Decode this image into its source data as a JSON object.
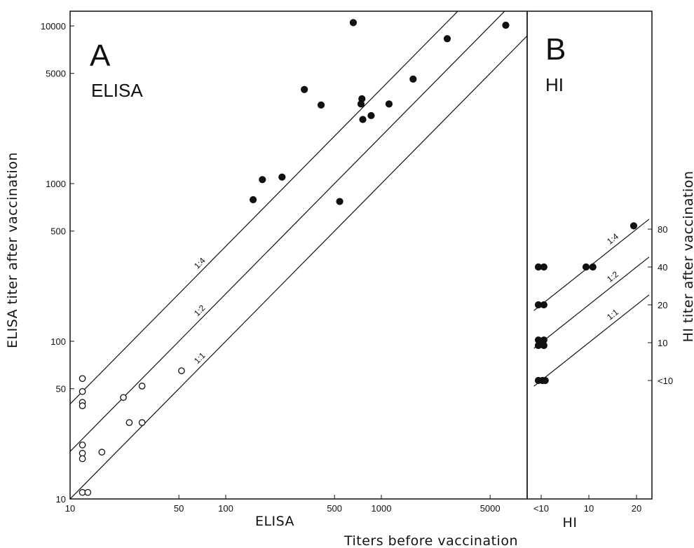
{
  "chart_data": [
    {
      "panel": "A",
      "panel_subtitle": "ELISA",
      "type": "scatter",
      "xlabel": "ELISA",
      "ylabel": "ELISA titer after vaccination",
      "xscale": "log",
      "yscale": "log",
      "xlim": [
        10,
        8000
      ],
      "ylim": [
        10,
        13000
      ],
      "x_ticks": [
        {
          "value": 10,
          "label": "10"
        },
        {
          "value": 50,
          "label": "50"
        },
        {
          "value": 100,
          "label": "100"
        },
        {
          "value": 500,
          "label": "500"
        },
        {
          "value": 1000,
          "label": "1000"
        },
        {
          "value": 5000,
          "label": "5000"
        }
      ],
      "y_ticks": [
        {
          "value": 10,
          "label": "10"
        },
        {
          "value": 50,
          "label": "50"
        },
        {
          "value": 100,
          "label": "100"
        },
        {
          "value": 500,
          "label": "500"
        },
        {
          "value": 1000,
          "label": "1000"
        },
        {
          "value": 5000,
          "label": "5000"
        },
        {
          "value": 10000,
          "label": "10000"
        }
      ],
      "reference_lines": [
        {
          "label": "1:4",
          "factor": 4,
          "label_x": 70
        },
        {
          "label": "1:2",
          "factor": 2,
          "label_x": 70
        },
        {
          "label": "1:1",
          "factor": 1,
          "label_x": 70
        }
      ],
      "series": [
        {
          "marker": "open-circle",
          "points": [
            [
              12,
              58
            ],
            [
              12,
              48
            ],
            [
              12,
              41
            ],
            [
              12,
              39
            ],
            [
              12,
              22
            ],
            [
              12,
              19.5
            ],
            [
              12,
              18
            ],
            [
              12,
              11
            ],
            [
              13,
              11
            ],
            [
              16,
              19.8
            ],
            [
              22,
              44
            ],
            [
              24,
              30.5
            ],
            [
              29,
              30.5
            ],
            [
              29,
              52
            ],
            [
              52,
              65
            ]
          ]
        },
        {
          "marker": "filled-circle",
          "points": [
            [
              150,
              790
            ],
            [
              172,
              1060
            ],
            [
              230,
              1100
            ],
            [
              320,
              3950
            ],
            [
              410,
              3150
            ],
            [
              540,
              770
            ],
            [
              660,
              10500
            ],
            [
              740,
              3200
            ],
            [
              750,
              3450
            ],
            [
              760,
              2550
            ],
            [
              860,
              2700
            ],
            [
              1120,
              3200
            ],
            [
              1600,
              4600
            ],
            [
              2650,
              8300
            ],
            [
              6300,
              10100
            ]
          ]
        }
      ]
    },
    {
      "panel": "B",
      "panel_subtitle": "HI",
      "type": "scatter",
      "xlabel": "HI",
      "ylabel": "HI titer after vaccination",
      "xscale": "log2-categorical",
      "x_ticks": [
        {
          "value": 5,
          "label": "<10"
        },
        {
          "value": 10,
          "label": "10"
        },
        {
          "value": 20,
          "label": "20"
        }
      ],
      "y_ticks": [
        {
          "value": 5,
          "label": "<10"
        },
        {
          "value": 10,
          "label": "10"
        },
        {
          "value": 20,
          "label": "20"
        },
        {
          "value": 40,
          "label": "40"
        },
        {
          "value": 80,
          "label": "80"
        }
      ],
      "reference_lines": [
        {
          "label": "1:4",
          "factor": 4,
          "label_x": 10
        },
        {
          "label": "1:2",
          "factor": 2,
          "label_x": 10
        },
        {
          "label": "1:1",
          "factor": 1,
          "label_x": 10
        }
      ],
      "series": [
        {
          "marker": "filled-circle",
          "points": [
            [
              4.8,
              40
            ],
            [
              5.2,
              40
            ],
            [
              4.8,
              20
            ],
            [
              5.2,
              20
            ],
            [
              4.8,
              10.5
            ],
            [
              5.2,
              10.5
            ],
            [
              4.8,
              9.5
            ],
            [
              5.2,
              9.5
            ],
            [
              4.8,
              5
            ],
            [
              5.1,
              5
            ],
            [
              5.3,
              5
            ],
            [
              9.6,
              40
            ],
            [
              10.6,
              40
            ],
            [
              19.2,
              85
            ]
          ]
        }
      ]
    }
  ],
  "shared_xlabel": "Titers before vaccination",
  "colors": {
    "ink": "#111111",
    "background": "#ffffff"
  }
}
